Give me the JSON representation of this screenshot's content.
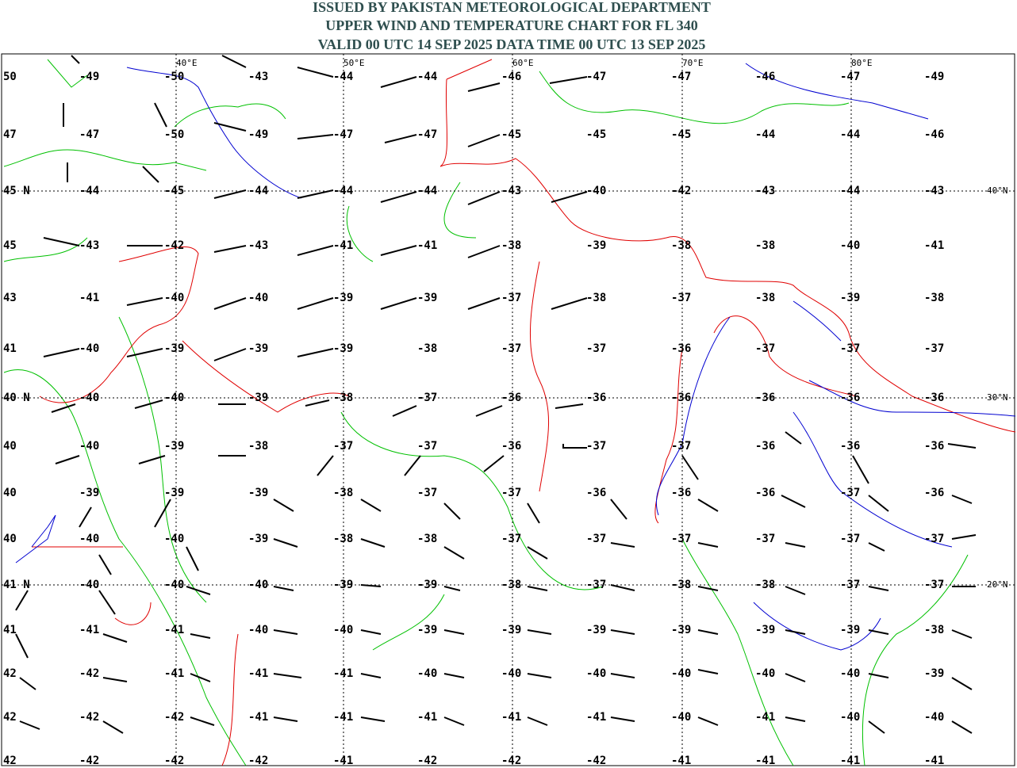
{
  "header": {
    "title_lines": [
      "ISSUED BY PAKISTAN METEOROLOGICAL DEPARTMENT",
      "UPPER WIND AND TEMPERATURE CHART FOR FL 340",
      "VALID 00 UTC 14 SEP 2025 DATA TIME 00 UTC 13 SEP 2025"
    ]
  },
  "map": {
    "lon_labels": [
      "40°E",
      "50°E",
      "60°E",
      "70°E",
      "80°E"
    ],
    "lat_labels": [
      "40°N",
      "30°N",
      "20°N"
    ]
  },
  "grid": {
    "rows": [
      [
        "50",
        "-49",
        "-50",
        "-43",
        "-44",
        "-44",
        "-46",
        "-47",
        "-47",
        "-46",
        "-47",
        "-49"
      ],
      [
        "47",
        "-47",
        "-50",
        "-49",
        "-47",
        "-47",
        "-45",
        "-45",
        "-45",
        "-44",
        "-44",
        "-46"
      ],
      [
        "45 N",
        "-44",
        "-45",
        "-44",
        "-44",
        "-44",
        "-43",
        "-40",
        "-42",
        "-43",
        "-44",
        "-43"
      ],
      [
        "45",
        "-43",
        "-42",
        "-43",
        "-41",
        "-41",
        "-38",
        "-39",
        "-38",
        "-38",
        "-40",
        "-41"
      ],
      [
        "43",
        "-41",
        "-40",
        "-40",
        "-39",
        "-39",
        "-37",
        "-38",
        "-37",
        "-38",
        "-39",
        "-38"
      ],
      [
        "41",
        "-40",
        "-39",
        "-39",
        "-39",
        "-38",
        "-37",
        "-37",
        "-36",
        "-37",
        "-37",
        "-37"
      ],
      [
        "40 N",
        "-40",
        "-40",
        "-39",
        "-38",
        "-37",
        "-36",
        "-36",
        "-36",
        "-36",
        "-36",
        "-36"
      ],
      [
        "40",
        "-40",
        "-39",
        "-38",
        "-37",
        "-37",
        "-36",
        "-37",
        "-37",
        "-36",
        "-36",
        "-36"
      ],
      [
        "40",
        "-39",
        "-39",
        "-39",
        "-38",
        "-37",
        "-37",
        "-36",
        "-36",
        "-36",
        "-37",
        "-36"
      ],
      [
        "40",
        "-40",
        "-40",
        "-39",
        "-38",
        "-38",
        "-37",
        "-37",
        "-37",
        "-37",
        "-37",
        "-37"
      ],
      [
        "41 N",
        "-40",
        "-40",
        "-40",
        "-39",
        "-39",
        "-38",
        "-37",
        "-38",
        "-38",
        "-37",
        "-37"
      ],
      [
        "41",
        "-41",
        "-41",
        "-40",
        "-40",
        "-39",
        "-39",
        "-39",
        "-39",
        "-39",
        "-39",
        "-38"
      ],
      [
        "42",
        "-42",
        "-41",
        "-41",
        "-41",
        "-40",
        "-40",
        "-40",
        "-40",
        "-40",
        "-40",
        "-39"
      ],
      [
        "42",
        "-42",
        "-42",
        "-41",
        "-41",
        "-41",
        "-41",
        "-41",
        "-40",
        "-41",
        "-40",
        "-40"
      ],
      [
        "42",
        "-42",
        "-42",
        "-42",
        "-41",
        "-42",
        "-42",
        "-42",
        "-41",
        "-41",
        "-41",
        "-41"
      ]
    ]
  }
}
